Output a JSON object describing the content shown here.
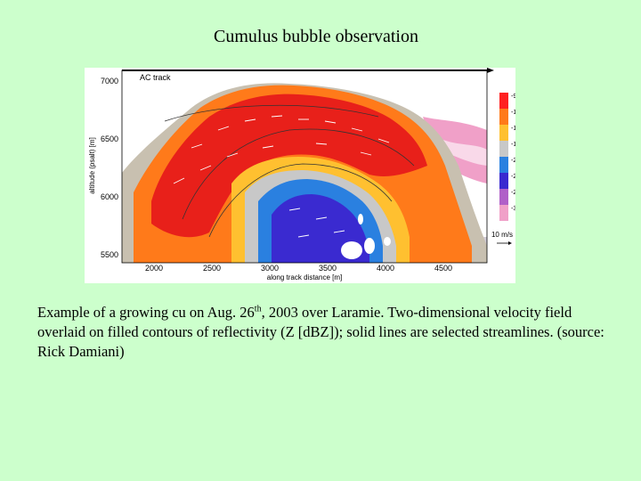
{
  "slide": {
    "title": "Cumulus bubble observation",
    "caption": {
      "part1": "Example of a growing cu on Aug. 26",
      "sup": "th",
      "part2": ", 2003 over Laramie. Two-dimensional velocity field overlaid on filled contours of reflectivity (Z [dBZ]); solid lines are selected streamlines. (source: Rick Damiani)"
    }
  },
  "chart_data": {
    "type": "heatmap",
    "annotation": "AC track",
    "xlabel": "along track distance [m]",
    "ylabel": "altitude (psalt) [m]",
    "x_ticks": [
      "2000",
      "2500",
      "3000",
      "3500",
      "4000",
      "4500"
    ],
    "y_ticks": [
      "7000",
      "6500",
      "6000",
      "5500"
    ],
    "colorbar": {
      "ticks": [
        "-9",
        "-12",
        "-15",
        "-18",
        "-21",
        "-24",
        "-27",
        "-30"
      ],
      "colors": [
        "#ff2020",
        "#ff7a1a",
        "#ffc030",
        "#c8c8c8",
        "#2a80e0",
        "#3a2ad0",
        "#b060c8",
        "#f0a0c8"
      ]
    },
    "vector_scale_label": "10 m/s"
  },
  "colors": {
    "background": "#ccffcc",
    "field_red": "#e8201a",
    "field_orange": "#ff7a1a",
    "field_yellow": "#ffc030",
    "field_blue": "#2a80e0",
    "field_purple": "#3a2ad0",
    "field_pink": "#f0a0c8"
  }
}
